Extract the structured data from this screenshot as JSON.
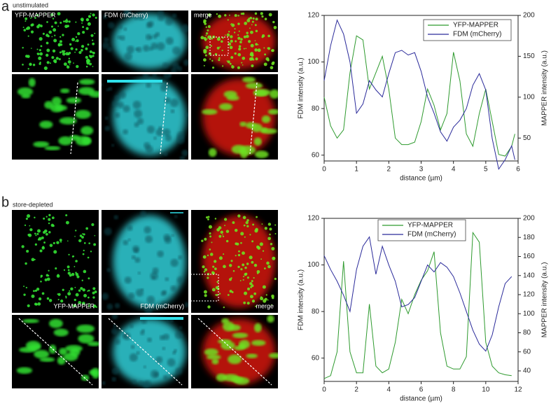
{
  "panels": [
    {
      "label": "a",
      "condition": "unstimulated",
      "images": [
        "YFP-MAPPER",
        "FDM (mCherry)",
        "merge"
      ]
    },
    {
      "label": "b",
      "condition": "store-depleted",
      "images": [
        "YFP-MAPPER",
        "FDM (mCherry)",
        "merge"
      ]
    }
  ],
  "chart_data": [
    {
      "type": "line",
      "xlabel": "distance (µm)",
      "ylabel": "FDM intensity (a.u.)",
      "y2label": "MAPPER intensity (a.u.)",
      "x": [
        0,
        0.2,
        0.4,
        0.6,
        0.8,
        1.0,
        1.2,
        1.4,
        1.6,
        1.8,
        2.0,
        2.2,
        2.4,
        2.6,
        2.8,
        3.0,
        3.2,
        3.4,
        3.6,
        3.8,
        4.0,
        4.2,
        4.4,
        4.6,
        4.8,
        5.0,
        5.2,
        5.4,
        5.6,
        5.8,
        5.9
      ],
      "series": [
        {
          "name": "YFP-MAPPER",
          "color": "#2e9a2e",
          "axis": "y2",
          "values": [
            100,
            65,
            50,
            60,
            130,
            175,
            170,
            110,
            130,
            150,
            110,
            50,
            42,
            42,
            45,
            70,
            110,
            90,
            60,
            80,
            155,
            120,
            55,
            40,
            80,
            110,
            70,
            30,
            28,
            40,
            55
          ]
        },
        {
          "name": "FDM (mCherry)",
          "color": "#2a2a9a",
          "axis": "y",
          "values": [
            92,
            107,
            118,
            112,
            100,
            78,
            82,
            92,
            88,
            85,
            95,
            104,
            105,
            103,
            104,
            96,
            85,
            78,
            70,
            66,
            72,
            75,
            80,
            90,
            95,
            88,
            67,
            54,
            58,
            64,
            58
          ]
        }
      ],
      "xlim": [
        0,
        6
      ],
      "xticks": [
        0,
        1,
        2,
        3,
        4,
        5,
        6
      ],
      "ylim": [
        57.5,
        120
      ],
      "yticks": [
        60,
        80,
        100,
        120
      ],
      "y2lim": [
        22,
        200
      ],
      "y2ticks": [
        50,
        100,
        150,
        200
      ],
      "legend": "upper right"
    },
    {
      "type": "line",
      "xlabel": "distance (µm)",
      "ylabel": "FDM intensity (a.u.)",
      "y2label": "MAPPER intensity (a.u.)",
      "x": [
        0,
        0.4,
        0.8,
        1.2,
        1.6,
        2.0,
        2.4,
        2.8,
        3.2,
        3.6,
        4.0,
        4.4,
        4.8,
        5.2,
        5.6,
        6.0,
        6.4,
        6.8,
        7.2,
        7.6,
        8.0,
        8.4,
        8.8,
        9.2,
        9.6,
        10.0,
        10.4,
        10.8,
        11.2,
        11.6
      ],
      "series": [
        {
          "name": "YFP-MAPPER",
          "color": "#2e9a2e",
          "axis": "y2",
          "values": [
            32,
            35,
            60,
            155,
            60,
            38,
            38,
            110,
            45,
            38,
            42,
            70,
            115,
            100,
            120,
            135,
            145,
            165,
            80,
            45,
            42,
            42,
            55,
            185,
            175,
            70,
            45,
            38,
            36,
            35
          ]
        },
        {
          "name": "FDM (mCherry)",
          "color": "#2a2a9a",
          "axis": "y",
          "values": [
            104,
            98,
            93,
            87,
            80,
            98,
            108,
            112,
            96,
            108,
            100,
            93,
            82,
            83,
            86,
            93,
            100,
            97,
            101,
            99,
            95,
            88,
            80,
            72,
            66,
            63,
            70,
            82,
            92,
            95
          ]
        }
      ],
      "xlim": [
        0,
        12
      ],
      "xticks": [
        0,
        2,
        4,
        6,
        8,
        10,
        12
      ],
      "ylim": [
        50,
        120
      ],
      "yticks": [
        60,
        80,
        100,
        120
      ],
      "y2lim": [
        29,
        200
      ],
      "y2ticks": [
        40,
        60,
        80,
        100,
        120,
        140,
        160,
        180,
        200
      ],
      "legend": "upper center"
    }
  ]
}
